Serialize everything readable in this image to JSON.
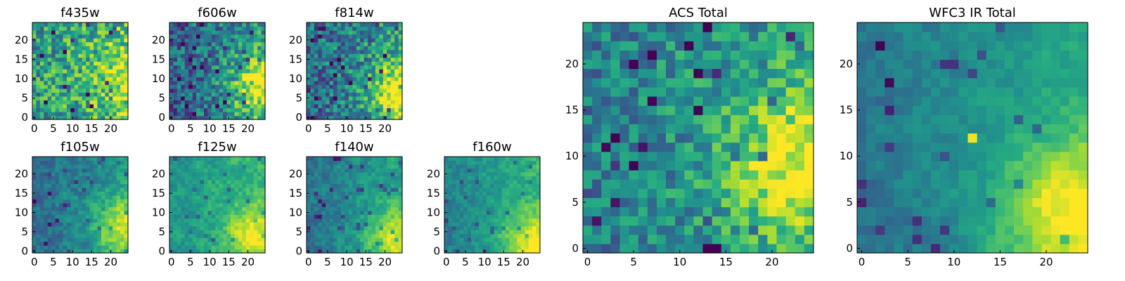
{
  "chart_data": [
    {
      "type": "heatmap",
      "title": "f435w",
      "cmap": "viridis",
      "grid_size": 25,
      "xlim": [
        0,
        24
      ],
      "ylim": [
        0,
        24
      ],
      "xticks": [
        "0",
        "5",
        "10",
        "15",
        "20"
      ],
      "yticks": [
        "0",
        "5",
        "10",
        "15",
        "20"
      ],
      "grid": false,
      "pattern": {
        "base": 0.62,
        "gradient": 0.15,
        "hot_x": 24,
        "hot_y": 10,
        "hot_amp": 0.25,
        "noise": 0.55,
        "seed": 11,
        "smooth": 0
      },
      "description": "noisy background with slightly brighter region at right edge"
    },
    {
      "type": "heatmap",
      "title": "f606w",
      "cmap": "viridis",
      "grid_size": 25,
      "xlim": [
        0,
        24
      ],
      "ylim": [
        0,
        24
      ],
      "xticks": [
        "0",
        "5",
        "10",
        "15",
        "20"
      ],
      "yticks": [
        "0",
        "5",
        "10",
        "15",
        "20"
      ],
      "grid": false,
      "pattern": {
        "base": 0.42,
        "gradient": 0.2,
        "hot_x": 24,
        "hot_y": 8,
        "hot_amp": 0.55,
        "noise": 0.5,
        "seed": 23,
        "smooth": 0
      }
    },
    {
      "type": "heatmap",
      "title": "f814w",
      "cmap": "viridis",
      "grid_size": 25,
      "xlim": [
        0,
        24
      ],
      "ylim": [
        0,
        24
      ],
      "xticks": [
        "0",
        "5",
        "10",
        "15",
        "20"
      ],
      "yticks": [
        "0",
        "5",
        "10",
        "15",
        "20"
      ],
      "grid": false,
      "pattern": {
        "base": 0.45,
        "gradient": 0.2,
        "hot_x": 24,
        "hot_y": 6,
        "hot_amp": 0.55,
        "noise": 0.5,
        "seed": 37,
        "smooth": 0
      }
    },
    {
      "type": "heatmap",
      "title": "f105w",
      "cmap": "viridis",
      "grid_size": 25,
      "xlim": [
        0,
        24
      ],
      "ylim": [
        0,
        24
      ],
      "xticks": [
        "0",
        "5",
        "10",
        "15",
        "20"
      ],
      "yticks": [
        "0",
        "5",
        "10",
        "15",
        "20"
      ],
      "grid": false,
      "pattern": {
        "base": 0.45,
        "gradient": 0.2,
        "hot_x": 23,
        "hot_y": 6,
        "hot_amp": 0.4,
        "noise": 0.35,
        "seed": 41,
        "smooth": 1
      }
    },
    {
      "type": "heatmap",
      "title": "f125w",
      "cmap": "viridis",
      "grid_size": 25,
      "xlim": [
        0,
        24
      ],
      "ylim": [
        0,
        24
      ],
      "xticks": [
        "0",
        "5",
        "10",
        "15",
        "20"
      ],
      "yticks": [
        "0",
        "5",
        "10",
        "15",
        "20"
      ],
      "grid": false,
      "pattern": {
        "base": 0.6,
        "gradient": 0.15,
        "hot_x": 22,
        "hot_y": 4,
        "hot_amp": 0.35,
        "noise": 0.3,
        "seed": 53,
        "smooth": 1
      }
    },
    {
      "type": "heatmap",
      "title": "f140w",
      "cmap": "viridis",
      "grid_size": 25,
      "xlim": [
        0,
        24
      ],
      "ylim": [
        0,
        24
      ],
      "xticks": [
        "0",
        "5",
        "10",
        "15",
        "20"
      ],
      "yticks": [
        "0",
        "5",
        "10",
        "15",
        "20"
      ],
      "grid": false,
      "pattern": {
        "base": 0.5,
        "gradient": 0.2,
        "hot_x": 23,
        "hot_y": 3,
        "hot_amp": 0.4,
        "noise": 0.3,
        "seed": 67,
        "smooth": 1
      }
    },
    {
      "type": "heatmap",
      "title": "f160w",
      "cmap": "viridis",
      "grid_size": 25,
      "xlim": [
        0,
        24
      ],
      "ylim": [
        0,
        24
      ],
      "xticks": [
        "0",
        "5",
        "10",
        "15",
        "20"
      ],
      "yticks": [
        "0",
        "5",
        "10",
        "15",
        "20"
      ],
      "grid": false,
      "pattern": {
        "base": 0.55,
        "gradient": 0.2,
        "hot_x": 23,
        "hot_y": 2,
        "hot_amp": 0.4,
        "noise": 0.28,
        "seed": 79,
        "smooth": 1
      }
    },
    {
      "type": "heatmap",
      "title": "ACS Total",
      "cmap": "viridis",
      "grid_size": 25,
      "xlim": [
        0,
        24
      ],
      "ylim": [
        0,
        24
      ],
      "xticks": [
        "0",
        "5",
        "10",
        "15",
        "20"
      ],
      "yticks": [
        "0",
        "5",
        "10",
        "15",
        "20"
      ],
      "grid": false,
      "pattern": {
        "base": 0.5,
        "gradient": 0.15,
        "hot_x": 23,
        "hot_y": 9,
        "hot_amp": 0.45,
        "noise": 0.4,
        "seed": 97,
        "smooth": 0
      }
    },
    {
      "type": "heatmap",
      "title": "WFC3 IR Total",
      "cmap": "viridis",
      "grid_size": 25,
      "xlim": [
        0,
        24
      ],
      "ylim": [
        0,
        24
      ],
      "xticks": [
        "0",
        "5",
        "10",
        "15",
        "20"
      ],
      "yticks": [
        "0",
        "5",
        "10",
        "15",
        "20"
      ],
      "grid": false,
      "pattern": {
        "base": 0.5,
        "gradient": 0.2,
        "hot_x": 23,
        "hot_y": 4,
        "hot_amp": 0.45,
        "noise": 0.22,
        "seed": 113,
        "smooth": 1
      },
      "features": [
        {
          "x": 12,
          "y": 12,
          "value": 0.98
        },
        {
          "x": 2,
          "y": 22,
          "value": 0.0
        },
        {
          "x": 3,
          "y": 18,
          "value": 0.02
        }
      ]
    }
  ]
}
